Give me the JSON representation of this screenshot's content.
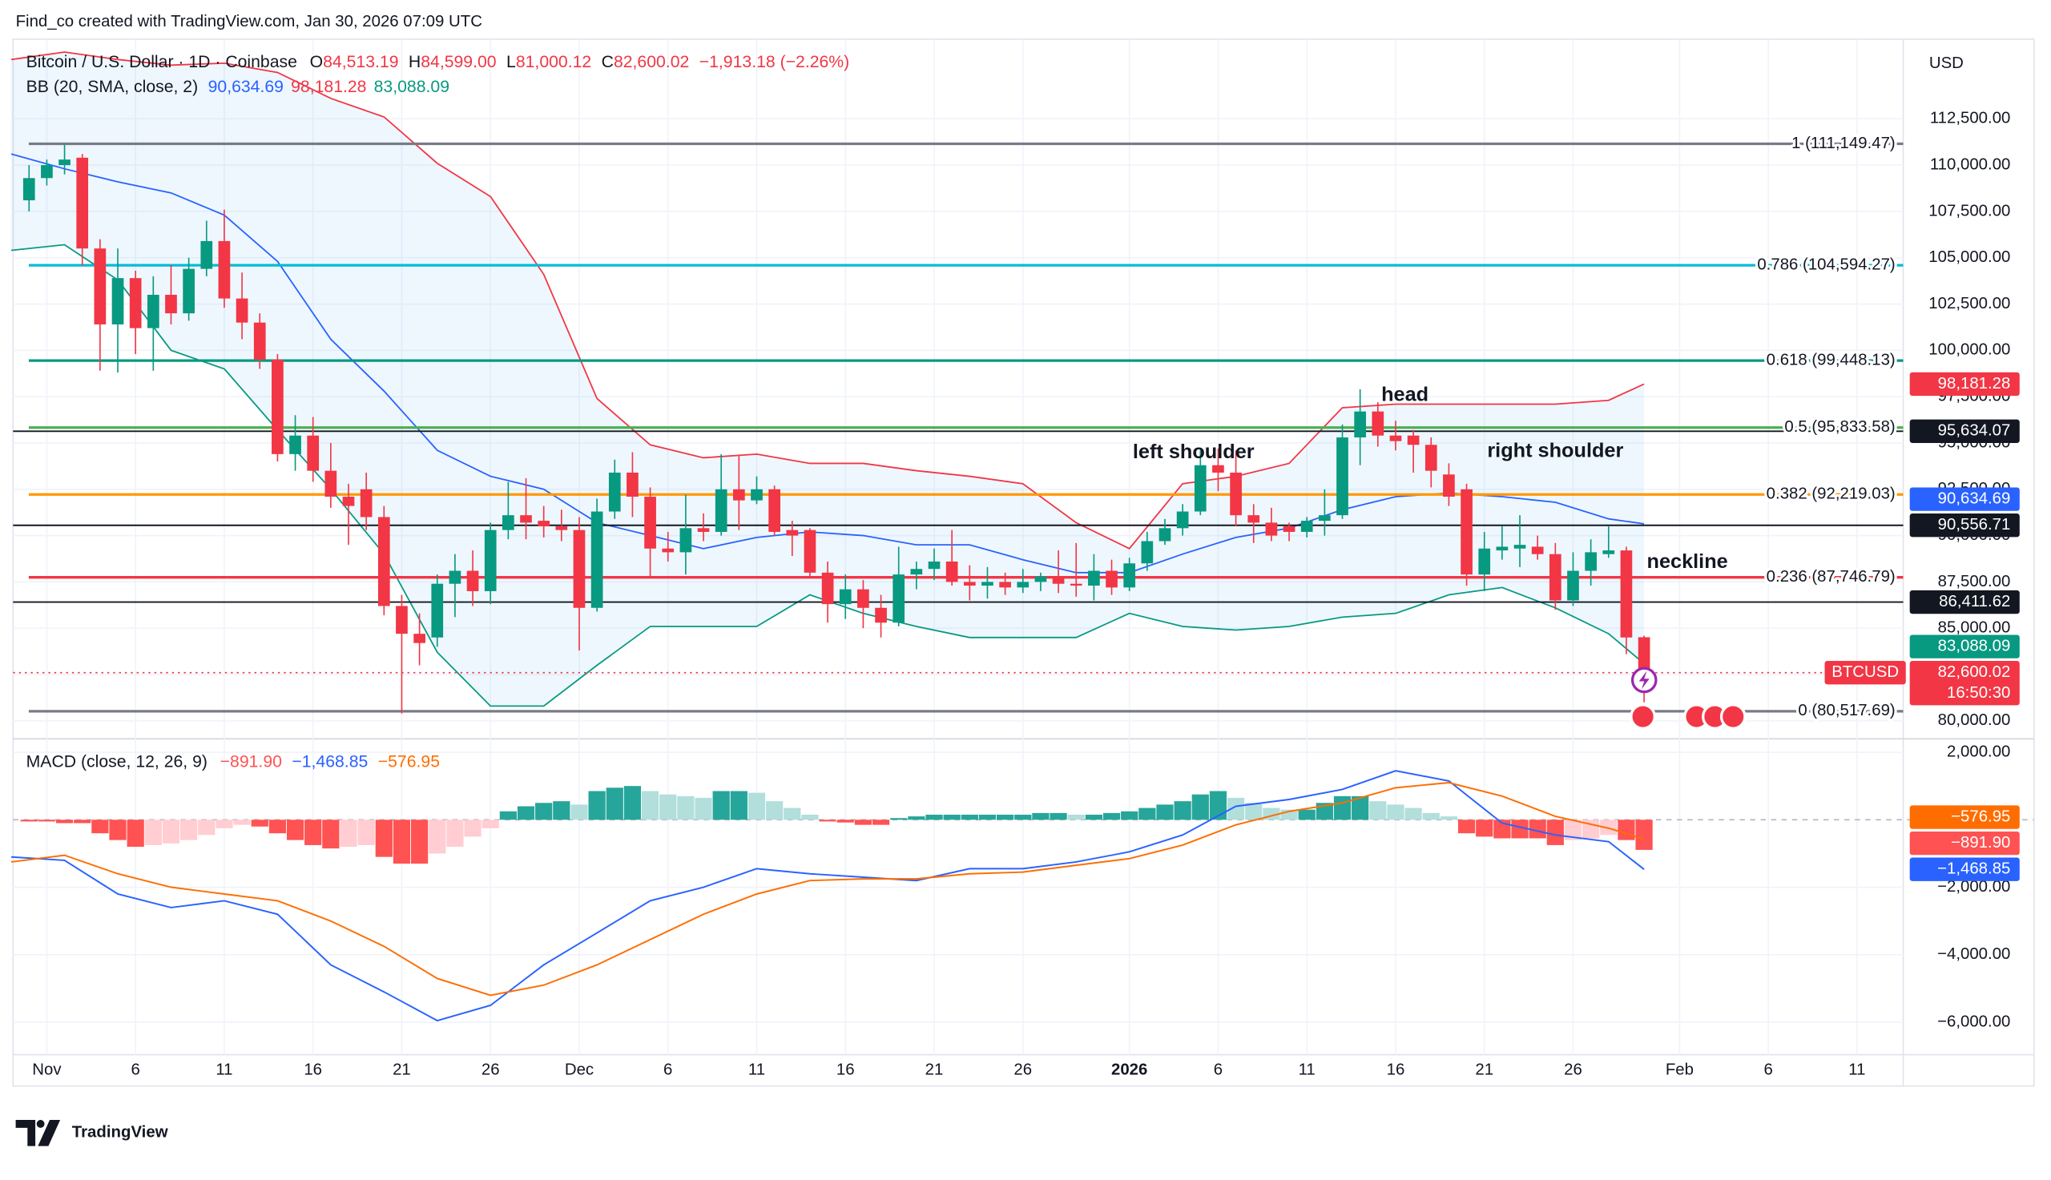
{
  "header": "Find_co created with TradingView.com, Jan 30, 2026 07:09 UTC",
  "currency": "USD",
  "branding": "TradingView",
  "chart_data": [
    {
      "type": "candlestick",
      "title": "Bitcoin / U.S. Dollar · 1D · Coinbase",
      "legend": [
        {
          "key": "O",
          "value": "84,513.19"
        },
        {
          "key": "H",
          "value": "84,599.00"
        },
        {
          "key": "L",
          "value": "81,000.12"
        },
        {
          "key": "C",
          "value": "82,600.02"
        }
      ],
      "change": "−1,913.18 (−2.26%)",
      "colors": {
        "up": "#089981",
        "down": "#f23645"
      },
      "xlim": [
        -1.9,
        104.6
      ],
      "ylim": [
        79100,
        116800
      ],
      "xticks": [
        {
          "value": 0,
          "label": "Nov"
        },
        {
          "value": 5,
          "label": "6"
        },
        {
          "value": 10,
          "label": "11"
        },
        {
          "value": 15,
          "label": "16"
        },
        {
          "value": 20,
          "label": "21"
        },
        {
          "value": 25,
          "label": "26"
        },
        {
          "value": 30,
          "label": "Dec"
        },
        {
          "value": 35,
          "label": "6"
        },
        {
          "value": 40,
          "label": "11"
        },
        {
          "value": 45,
          "label": "16"
        },
        {
          "value": 50,
          "label": "21"
        },
        {
          "value": 55,
          "label": "26"
        },
        {
          "value": 61,
          "label": "2026"
        },
        {
          "value": 66,
          "label": "6"
        },
        {
          "value": 71,
          "label": "11"
        },
        {
          "value": 76,
          "label": "16"
        },
        {
          "value": 81,
          "label": "21"
        },
        {
          "value": 86,
          "label": "26"
        },
        {
          "value": 92,
          "label": "Feb"
        },
        {
          "value": 97,
          "label": "6"
        },
        {
          "value": 102,
          "label": "11"
        }
      ],
      "yticks": [
        {
          "value": 80000,
          "label": "80,000.00"
        },
        {
          "value": 82500,
          "label": "82,500.00"
        },
        {
          "value": 85000,
          "label": "85,000.00"
        },
        {
          "value": 87500,
          "label": "87,500.00"
        },
        {
          "value": 90000,
          "label": "90,000.00"
        },
        {
          "value": 92500,
          "label": "92,500.00"
        },
        {
          "value": 95000,
          "label": "95,000.00"
        },
        {
          "value": 97500,
          "label": "97,500.00"
        },
        {
          "value": 100000,
          "label": "100,000.00"
        },
        {
          "value": 102500,
          "label": "102,500.00"
        },
        {
          "value": 105000,
          "label": "105,000.00"
        },
        {
          "value": 107500,
          "label": "107,500.00"
        },
        {
          "value": 110000,
          "label": "110,000.00"
        },
        {
          "value": 112500,
          "label": "112,500.00"
        }
      ],
      "grid": true,
      "x": [
        -1,
        0,
        1,
        2,
        3,
        4,
        5,
        6,
        7,
        8,
        9,
        10,
        11,
        12,
        13,
        14,
        15,
        16,
        17,
        18,
        19,
        20,
        21,
        22,
        23,
        24,
        25,
        26,
        27,
        28,
        29,
        30,
        31,
        32,
        33,
        34,
        35,
        36,
        37,
        38,
        39,
        40,
        41,
        42,
        43,
        44,
        45,
        46,
        47,
        48,
        49,
        50,
        51,
        52,
        53,
        54,
        55,
        56,
        57,
        58,
        59,
        60,
        61,
        62,
        63,
        64,
        65,
        66,
        67,
        68,
        69,
        70,
        71,
        72,
        73,
        74,
        75,
        76,
        77,
        78,
        79,
        80,
        81,
        82,
        83,
        84,
        85,
        86,
        87,
        88,
        89,
        90
      ],
      "open": [
        108100,
        109300,
        110000,
        110400,
        105500,
        101400,
        103900,
        101200,
        103000,
        102000,
        104400,
        105900,
        102800,
        101500,
        99500,
        94400,
        95400,
        93500,
        92100,
        92500,
        91000,
        86200,
        84700,
        84500,
        87400,
        88100,
        87000,
        90300,
        91100,
        90800,
        90500,
        90300,
        86100,
        91300,
        93400,
        92100,
        89300,
        89100,
        90400,
        90200,
        92500,
        91900,
        92500,
        90300,
        90300,
        88000,
        86300,
        87100,
        86100,
        85300,
        87900,
        88200,
        88600,
        87500,
        87300,
        87500,
        87200,
        87500,
        87800,
        87400,
        87300,
        88100,
        87200,
        88500,
        89700,
        90400,
        91300,
        93800,
        93400,
        91100,
        90700,
        90500,
        90200,
        90800,
        91100,
        95300,
        96700,
        95400,
        95400,
        94900,
        93300,
        92500,
        87900,
        89200,
        89300,
        89400,
        89000,
        86500,
        88100,
        89000,
        89200,
        84513.19
      ],
      "high": [
        110000,
        110300,
        111100,
        110600,
        106000,
        105500,
        104300,
        104000,
        104600,
        105000,
        107000,
        107600,
        104200,
        102000,
        99800,
        96500,
        96400,
        95000,
        92800,
        93400,
        91600,
        86800,
        85800,
        87900,
        89000,
        89200,
        90700,
        92900,
        93100,
        91600,
        91400,
        91000,
        92000,
        94100,
        94500,
        92600,
        90200,
        92200,
        91200,
        94400,
        94300,
        93200,
        92700,
        90800,
        90400,
        88600,
        87900,
        87600,
        86800,
        89400,
        88600,
        89300,
        90300,
        88400,
        88300,
        88000,
        88200,
        88000,
        89200,
        89600,
        89000,
        88700,
        88800,
        90200,
        90900,
        91700,
        94600,
        94700,
        94600,
        91700,
        91500,
        90700,
        91000,
        92500,
        96000,
        97900,
        97200,
        96200,
        95700,
        95300,
        93900,
        92800,
        90200,
        90500,
        91100,
        90000,
        89600,
        89100,
        89800,
        90500,
        89400,
        84599
      ],
      "low": [
        107500,
        108900,
        109500,
        104600,
        98900,
        98800,
        99800,
        98900,
        101400,
        101600,
        104000,
        102300,
        100600,
        99000,
        94000,
        93500,
        92900,
        91500,
        89500,
        90300,
        85700,
        80400,
        83000,
        84000,
        85600,
        86200,
        86300,
        89800,
        89800,
        89900,
        89700,
        83800,
        85900,
        90900,
        91000,
        87700,
        88600,
        87900,
        89700,
        90000,
        90300,
        91700,
        90000,
        88900,
        87800,
        85300,
        85500,
        85000,
        84500,
        85100,
        87100,
        87600,
        87300,
        86500,
        86600,
        86800,
        86900,
        87000,
        86900,
        86700,
        86500,
        86800,
        87000,
        88100,
        89500,
        90000,
        91100,
        92400,
        90500,
        89600,
        89700,
        89700,
        89900,
        90000,
        90900,
        93800,
        94800,
        94600,
        93400,
        92600,
        91600,
        87300,
        87000,
        88700,
        88300,
        88700,
        86000,
        86200,
        87300,
        88800,
        83600,
        81000.12
      ],
      "close": [
        109300,
        110000,
        110300,
        105500,
        101400,
        103900,
        101200,
        103000,
        102000,
        104400,
        105900,
        102800,
        101500,
        99500,
        94400,
        95400,
        93500,
        92100,
        91600,
        91000,
        86200,
        84700,
        84200,
        87400,
        88100,
        87000,
        90300,
        91100,
        90700,
        90500,
        90300,
        86100,
        91300,
        93400,
        92100,
        89300,
        89100,
        90400,
        90200,
        92500,
        91900,
        92500,
        90200,
        90000,
        88000,
        86300,
        87100,
        86100,
        85300,
        87900,
        88200,
        88600,
        87500,
        87300,
        87500,
        87200,
        87500,
        87800,
        87400,
        87300,
        88100,
        87200,
        88500,
        89700,
        90400,
        91300,
        93800,
        93400,
        91100,
        90700,
        90000,
        90200,
        90800,
        91100,
        95300,
        96700,
        95400,
        95100,
        94900,
        93500,
        92100,
        87900,
        89300,
        89400,
        89500,
        89000,
        86500,
        88100,
        89100,
        89200,
        84500,
        82600.02
      ],
      "bb": {
        "title": "BB (20, SMA, close, 2)",
        "x": [
          -2,
          1,
          4,
          7,
          10,
          13,
          16,
          19,
          22,
          25,
          28,
          31,
          34,
          37,
          40,
          43,
          46,
          49,
          52,
          55,
          58,
          61,
          64,
          67,
          70,
          73,
          76,
          79,
          82,
          85,
          88,
          90
        ],
        "fill": "rgba(33,150,243,0.08)",
        "lines": [
          {
            "color": "#2962ff",
            "label": "90,634.69",
            "values": [
              110600,
              109800,
              109100,
              108500,
              107300,
              104800,
              100600,
              97800,
              94600,
              93200,
              92500,
              90700,
              90000,
              89300,
              89900,
              90200,
              90000,
              89500,
              89500,
              88700,
              88000,
              88000,
              89000,
              89900,
              90400,
              91400,
              92100,
              92300,
              92100,
              91800,
              90900,
              90634.69
            ]
          },
          {
            "color": "#f23645",
            "label": "98,181.28",
            "values": [
              115700,
              116100,
              115700,
              115400,
              115500,
              115000,
              113600,
              112600,
              110100,
              108300,
              104100,
              97400,
              94900,
              94200,
              94400,
              93900,
              93900,
              93500,
              93200,
              92800,
              90700,
              89300,
              92800,
              93200,
              93900,
              96900,
              97100,
              97100,
              97100,
              97100,
              97300,
              98181.28
            ]
          },
          {
            "color": "#089981",
            "label": "83,088.09",
            "values": [
              105400,
              105700,
              103800,
              100000,
              99000,
              95700,
              92500,
              89000,
              83700,
              80800,
              80800,
              83000,
              85100,
              85100,
              85100,
              86800,
              85800,
              85100,
              84500,
              84500,
              84500,
              85800,
              85100,
              84900,
              85100,
              85600,
              85800,
              86800,
              87200,
              86100,
              84700,
              83088.09
            ]
          }
        ]
      },
      "fib_levels": [
        {
          "value": 111149.47,
          "label": "1 (111,149.47)",
          "color": "#787b86"
        },
        {
          "value": 104594.27,
          "label": "0.786 (104,594.27)",
          "color": "#00bcd4"
        },
        {
          "value": 99448.13,
          "label": "0.618 (99,448.13)",
          "color": "#089981"
        },
        {
          "value": 95833.58,
          "label": "0.5 (95,833.58)",
          "color": "#4caf50"
        },
        {
          "value": 92219.03,
          "label": "0.382 (92,219.03)",
          "color": "#ff9800"
        },
        {
          "value": 87746.79,
          "label": "0.236 (87,746.79)",
          "color": "#f23645"
        },
        {
          "value": 80517.69,
          "label": "0 (80,517.69)",
          "color": "#787b86"
        }
      ],
      "horizontal_lines": [
        {
          "value": 95634.07,
          "label": "95,634.07"
        },
        {
          "value": 90556.71,
          "label": "90,556.71"
        },
        {
          "value": 86411.62,
          "label": "86,411.62"
        }
      ],
      "price_tag": {
        "symbol": "BTCUSD",
        "countdown": "16:50:30"
      },
      "annotations": [
        "left shoulder",
        "head",
        "right shoulder",
        "neckline"
      ]
    },
    {
      "type": "macd",
      "title": "MACD (close, 12, 26, 9)",
      "xlim": [
        -1.9,
        104.6
      ],
      "ylim": [
        -6960,
        2360
      ],
      "yticks": [
        {
          "value": 2000,
          "label": "2,000.00"
        },
        {
          "value": -2000,
          "label": "−2,000.00"
        },
        {
          "value": -4000,
          "label": "−4,000.00"
        },
        {
          "value": -6000,
          "label": "−6,000.00"
        }
      ],
      "baseline": 0,
      "histogram": {
        "label": "−891.90",
        "colors": {
          "up_strong": "#26a69a",
          "up_weak": "#b2dfdb",
          "down_strong": "#ff5252",
          "down_weak": "#ffcdd2"
        },
        "x": [
          -1,
          0,
          1,
          2,
          3,
          4,
          5,
          6,
          7,
          8,
          9,
          10,
          11,
          12,
          13,
          14,
          15,
          16,
          17,
          18,
          19,
          20,
          21,
          22,
          23,
          24,
          25,
          26,
          27,
          28,
          29,
          30,
          31,
          32,
          33,
          34,
          35,
          36,
          37,
          38,
          39,
          40,
          41,
          42,
          43,
          44,
          45,
          46,
          47,
          48,
          49,
          50,
          51,
          52,
          53,
          54,
          55,
          56,
          57,
          58,
          59,
          60,
          61,
          62,
          63,
          64,
          65,
          66,
          67,
          68,
          69,
          70,
          71,
          72,
          73,
          74,
          75,
          76,
          77,
          78,
          79,
          80,
          81,
          82,
          83,
          84,
          85,
          86,
          87,
          88,
          89,
          90
        ],
        "values": [
          -50,
          -50,
          -100,
          -100,
          -400,
          -600,
          -800,
          -750,
          -700,
          -600,
          -450,
          -250,
          -150,
          -200,
          -400,
          -600,
          -750,
          -850,
          -800,
          -750,
          -1100,
          -1300,
          -1300,
          -1000,
          -800,
          -500,
          -250,
          250,
          400,
          500,
          550,
          450,
          850,
          950,
          1000,
          850,
          750,
          700,
          650,
          850,
          850,
          800,
          550,
          350,
          150,
          -50,
          -80,
          -150,
          -150,
          50,
          100,
          150,
          150,
          150,
          150,
          150,
          150,
          200,
          200,
          150,
          150,
          200,
          250,
          350,
          450,
          550,
          750,
          850,
          650,
          500,
          350,
          300,
          300,
          500,
          700,
          700,
          550,
          450,
          350,
          200,
          100,
          -400,
          -500,
          -550,
          -550,
          -550,
          -750,
          -600,
          -550,
          -450,
          -600,
          -891.9
        ]
      },
      "x": [
        -2,
        1,
        4,
        7,
        10,
        13,
        16,
        19,
        22,
        25,
        28,
        31,
        34,
        37,
        40,
        43,
        46,
        49,
        52,
        55,
        58,
        61,
        64,
        67,
        70,
        73,
        76,
        79,
        82,
        85,
        88,
        90
      ],
      "series": [
        {
          "color": "#2962ff",
          "label": "−1,468.85",
          "values": [
            -1100,
            -1200,
            -2200,
            -2600,
            -2400,
            -2800,
            -4300,
            -5100,
            -5950,
            -5500,
            -4300,
            -3350,
            -2400,
            -2000,
            -1450,
            -1600,
            -1700,
            -1800,
            -1450,
            -1450,
            -1250,
            -950,
            -450,
            400,
            600,
            900,
            1450,
            1150,
            -100,
            -450,
            -650,
            -1468.85
          ]
        },
        {
          "color": "#ff6d00",
          "label": "−576.95",
          "values": [
            -1250,
            -1050,
            -1600,
            -2000,
            -2200,
            -2400,
            -3000,
            -3750,
            -4700,
            -5200,
            -4900,
            -4300,
            -3550,
            -2800,
            -2200,
            -1800,
            -1750,
            -1750,
            -1600,
            -1550,
            -1350,
            -1150,
            -750,
            -150,
            250,
            500,
            950,
            1100,
            700,
            100,
            -250,
            -576.95
          ]
        }
      ]
    }
  ]
}
